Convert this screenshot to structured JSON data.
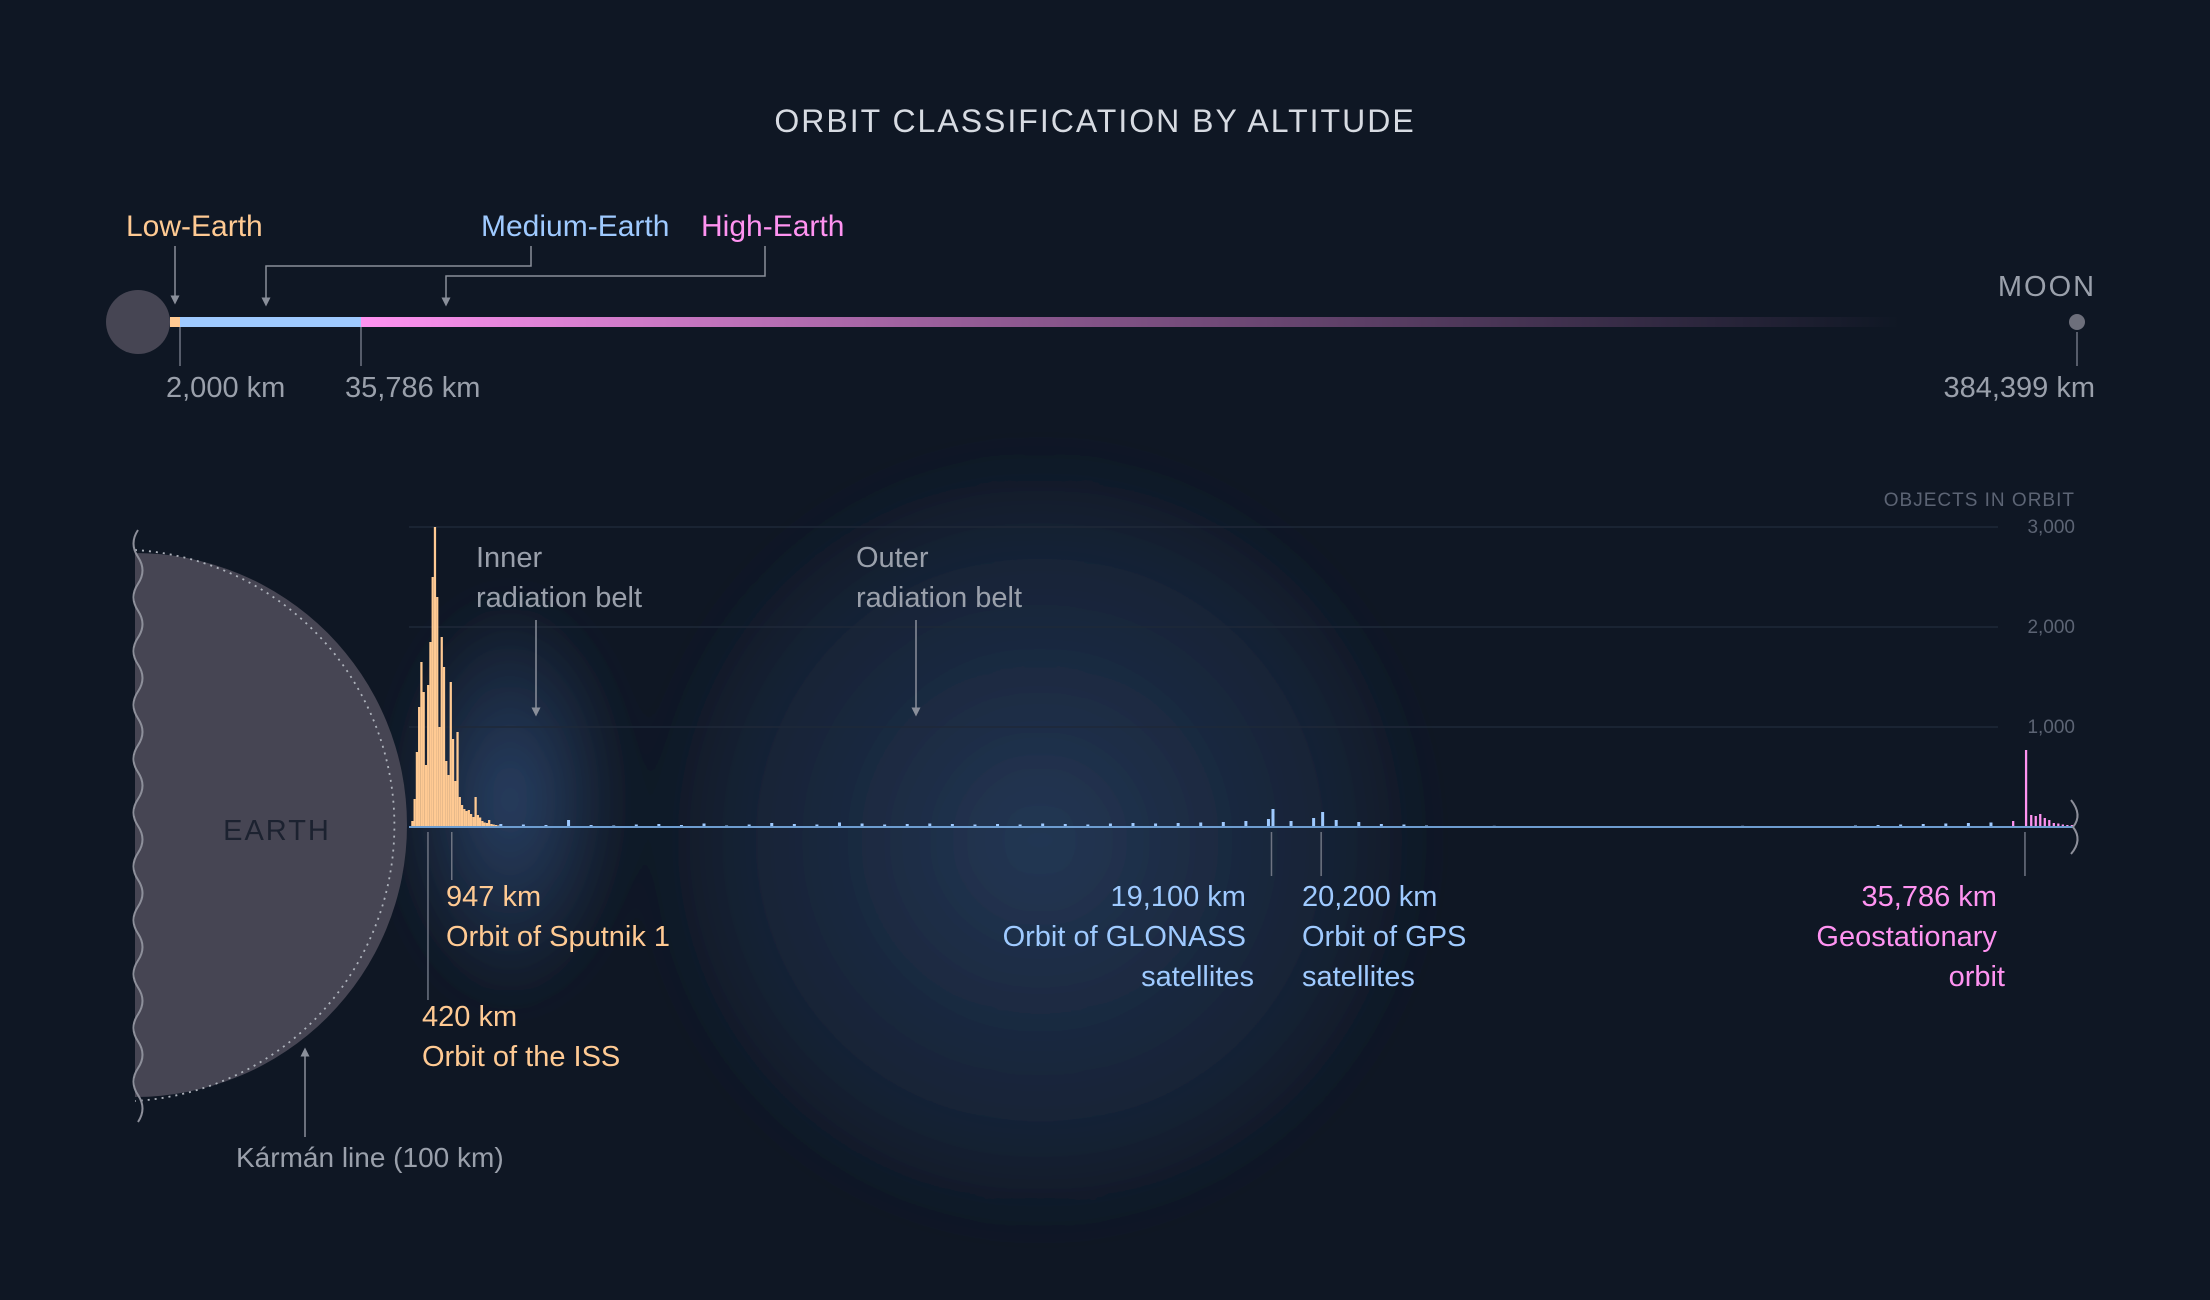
{
  "title": "ORBIT CLASSIFICATION BY ALTITUDE",
  "colors": {
    "background": "#0f1724",
    "leo": "#ffca93",
    "meo": "#9fcaff",
    "heo": "#ff93f1",
    "earth": "#464553",
    "muted": "#8a8f9a",
    "axis": "#5c6474"
  },
  "scale": {
    "labels": {
      "leo": "Low-Earth",
      "meo": "Medium-Earth",
      "heo": "High-Earth",
      "moon": "MOON"
    },
    "ticks": [
      {
        "value": 2000,
        "label": "2,000 km"
      },
      {
        "value": 35786,
        "label": "35,786 km"
      },
      {
        "value": 384399,
        "label": "384,399 km"
      }
    ]
  },
  "chart_data": {
    "type": "bar",
    "title": "ORBIT CLASSIFICATION BY ALTITUDE",
    "ylabel": "OBJECTS IN ORBIT",
    "xlabel": "",
    "xlim": [
      0,
      36850
    ],
    "ylim": [
      0,
      3000
    ],
    "yticks": [
      {
        "value": 1000,
        "label": "1,000"
      },
      {
        "value": 2000,
        "label": "2,000"
      },
      {
        "value": 3000,
        "label": "3,000"
      }
    ],
    "grid": true,
    "legend": "none",
    "bin_width_km": 50,
    "series": [
      {
        "color": "#ffca93",
        "x": [
          0,
          50,
          100,
          150,
          200,
          250,
          300,
          350,
          400,
          450,
          500,
          550,
          600,
          650,
          700,
          750,
          800,
          850,
          900,
          950,
          1000,
          1050,
          1100,
          1150,
          1200,
          1250,
          1300,
          1350,
          1400,
          1450,
          1500,
          1550,
          1600,
          1650,
          1700,
          1750,
          1800,
          1850,
          1900,
          1950
        ],
        "values": [
          5,
          60,
          280,
          750,
          1200,
          1650,
          1350,
          620,
          1420,
          1850,
          2500,
          3000,
          2300,
          1000,
          1900,
          1600,
          660,
          520,
          1450,
          880,
          460,
          950,
          300,
          220,
          180,
          160,
          170,
          130,
          100,
          300,
          120,
          95,
          60,
          45,
          40,
          70,
          30,
          25,
          20,
          15
        ]
      },
      {
        "color": "#9fcaff",
        "x": [
          2000,
          2500,
          3000,
          3500,
          4000,
          4500,
          5000,
          5500,
          6000,
          6500,
          7000,
          7500,
          8000,
          8500,
          9000,
          9500,
          10000,
          10500,
          11000,
          11500,
          12000,
          12500,
          13000,
          13500,
          14000,
          14500,
          15000,
          15500,
          16000,
          16500,
          17000,
          17500,
          18000,
          18500,
          19000,
          19100,
          19500,
          20000,
          20200,
          20500,
          21000,
          21500,
          22000,
          22500,
          23000,
          23500,
          24000,
          24500,
          25000,
          25500,
          26000,
          26500,
          27000,
          27500,
          28000,
          28500,
          29000,
          29500,
          30000,
          30500,
          31000,
          31500,
          32000,
          32500,
          33000,
          33500,
          34000,
          34500,
          35000
        ],
        "values": [
          30,
          25,
          20,
          70,
          20,
          15,
          25,
          30,
          20,
          35,
          15,
          25,
          40,
          30,
          25,
          45,
          35,
          25,
          30,
          35,
          30,
          25,
          30,
          25,
          35,
          30,
          25,
          35,
          40,
          35,
          40,
          45,
          50,
          60,
          80,
          180,
          60,
          90,
          150,
          70,
          50,
          30,
          25,
          15,
          10,
          10,
          12,
          10,
          8,
          10,
          10,
          8,
          10,
          8,
          10,
          8,
          10,
          12,
          10,
          8,
          10,
          10,
          15,
          20,
          25,
          30,
          35,
          40,
          45
        ]
      },
      {
        "color": "#ff93f1",
        "x": [
          35500,
          35786,
          35900,
          36000,
          36100,
          36200,
          36300,
          36400,
          36500,
          36600,
          36700,
          36800
        ],
        "values": [
          60,
          770,
          120,
          110,
          130,
          90,
          70,
          40,
          35,
          25,
          20,
          20
        ]
      }
    ],
    "annotations": {
      "karman": "Kármán line (100 km)",
      "earth": "EARTH",
      "inner_belt": [
        "Inner",
        "radiation belt"
      ],
      "outer_belt": [
        "Outer",
        "radiation belt"
      ],
      "iss": {
        "x": 420,
        "value": "420 km",
        "label": "Orbit of the ISS"
      },
      "sputnik": {
        "x": 947,
        "value": "947 km",
        "label": "Orbit of Sputnik 1"
      },
      "glonass": {
        "x": 19100,
        "value": "19,100 km",
        "label": [
          "Orbit of GLONASS",
          "satellites"
        ]
      },
      "gps": {
        "x": 20200,
        "value": "20,200 km",
        "label": [
          "Orbit of GPS",
          "satellites"
        ]
      },
      "geo": {
        "x": 35786,
        "value": "35,786 km",
        "label": [
          "Geostationary",
          "orbit"
        ]
      }
    }
  }
}
